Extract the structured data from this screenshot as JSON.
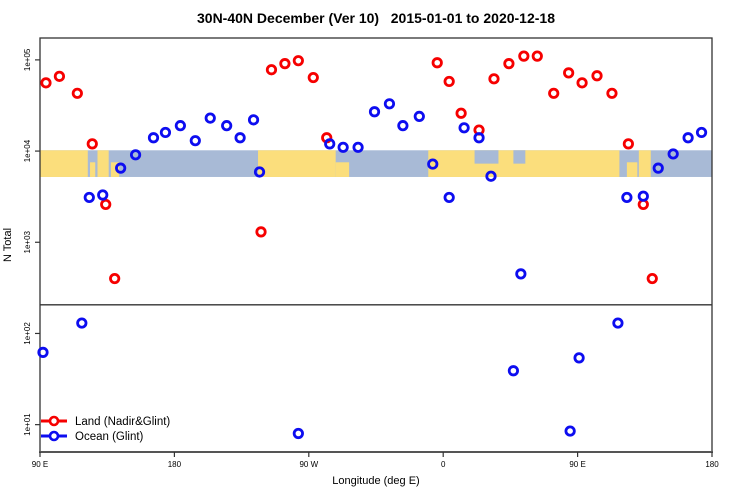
{
  "title": "30N-40N December (Ver 10)   2015-01-01 to 2020-12-18",
  "chart_data": {
    "type": "scatter",
    "title": "30N-40N December (Ver 10)   2015-01-01 to 2020-12-18",
    "xlabel": "Longitude (deg E)",
    "ylabel": "N Total",
    "x_axis": {
      "min": 90,
      "max": 540,
      "ticks": [
        {
          "pos": 90,
          "label": "90 E"
        },
        {
          "pos": 180,
          "label": "180"
        },
        {
          "pos": 270,
          "label": "90 W"
        },
        {
          "pos": 360,
          "label": "0"
        },
        {
          "pos": 450,
          "label": "90 E"
        },
        {
          "pos": 540,
          "label": "180"
        }
      ]
    },
    "y_axis": {
      "scale": "log10",
      "log_min": 0.7,
      "log_max": 5.24,
      "ticks": [
        {
          "value": 10,
          "label": "1e+01"
        },
        {
          "value": 100,
          "label": "1e+02"
        },
        {
          "value": 1000,
          "label": "1e+03"
        },
        {
          "value": 10000,
          "label": "1e+04"
        },
        {
          "value": 100000,
          "label": "1e+05"
        }
      ]
    },
    "reference_line_value": 206,
    "map_band": {
      "value_top": 10200,
      "value_bottom": 5200,
      "ocean_color": "#a8bad6",
      "land_color": "#fbde7c",
      "land_segments": [
        {
          "from": 90,
          "to": 122,
          "part": "full"
        },
        {
          "from": 123.5,
          "to": 127,
          "part": "bottom"
        },
        {
          "from": 128.5,
          "to": 136,
          "part": "full"
        },
        {
          "from": 137.5,
          "to": 143,
          "part": "bottom"
        },
        {
          "from": 236,
          "to": 288,
          "part": "full"
        },
        {
          "from": 288,
          "to": 297,
          "part": "bottom"
        },
        {
          "from": 350,
          "to": 478,
          "part": "full"
        },
        {
          "from": 483,
          "to": 490,
          "part": "bottom"
        },
        {
          "from": 491,
          "to": 499,
          "part": "full"
        }
      ],
      "sea_patches": [
        {
          "from": 381,
          "to": 397,
          "part": "top"
        },
        {
          "from": 407,
          "to": 415,
          "part": "top"
        }
      ]
    },
    "series": [
      {
        "name": "Land (Nadir&Glint)",
        "color": "#f60000",
        "points": [
          [
            94,
            56000
          ],
          [
            103,
            66000
          ],
          [
            115,
            43000
          ],
          [
            125,
            12000
          ],
          [
            134,
            2600
          ],
          [
            140,
            400
          ],
          [
            238,
            1300
          ],
          [
            245,
            78000
          ],
          [
            254,
            91000
          ],
          [
            263,
            98000
          ],
          [
            273,
            64000
          ],
          [
            282,
            14000
          ],
          [
            356,
            93000
          ],
          [
            364,
            58000
          ],
          [
            372,
            26000
          ],
          [
            384,
            17000
          ],
          [
            394,
            62000
          ],
          [
            404,
            91000
          ],
          [
            414,
            110000
          ],
          [
            423,
            110000
          ],
          [
            434,
            43000
          ],
          [
            444,
            72000
          ],
          [
            453,
            56000
          ],
          [
            463,
            67000
          ],
          [
            473,
            43000
          ],
          [
            484,
            12000
          ],
          [
            494,
            2600
          ],
          [
            500,
            400
          ]
        ]
      },
      {
        "name": "Ocean (Glint)",
        "color": "#0d0df0",
        "points": [
          [
            92,
            62
          ],
          [
            118,
            130
          ],
          [
            123,
            3100
          ],
          [
            132,
            3300
          ],
          [
            144,
            6500
          ],
          [
            154,
            9100
          ],
          [
            166,
            14000
          ],
          [
            174,
            16000
          ],
          [
            184,
            19000
          ],
          [
            194,
            13000
          ],
          [
            204,
            23000
          ],
          [
            215,
            19000
          ],
          [
            224,
            14000
          ],
          [
            233,
            22000
          ],
          [
            237,
            5900
          ],
          [
            263,
            8
          ],
          [
            284,
            12000
          ],
          [
            293,
            11000
          ],
          [
            303,
            11000
          ],
          [
            314,
            27000
          ],
          [
            324,
            33000
          ],
          [
            333,
            19000
          ],
          [
            344,
            24000
          ],
          [
            353,
            7200
          ],
          [
            364,
            3100
          ],
          [
            374,
            18000
          ],
          [
            384,
            14000
          ],
          [
            392,
            5300
          ],
          [
            407,
            39
          ],
          [
            412,
            450
          ],
          [
            445,
            8.5
          ],
          [
            451,
            54
          ],
          [
            477,
            130
          ],
          [
            483,
            3100
          ],
          [
            494,
            3200
          ],
          [
            504,
            6500
          ],
          [
            514,
            9300
          ],
          [
            524,
            14000
          ],
          [
            533,
            16000
          ]
        ]
      }
    ],
    "legend": {
      "position": "bottom-left",
      "entries": [
        "Land (Nadir&Glint)",
        "Ocean (Glint)"
      ]
    },
    "colors": {
      "axis": "#333333",
      "bottom_axis": "#555555",
      "reference_line": "#333333"
    }
  }
}
